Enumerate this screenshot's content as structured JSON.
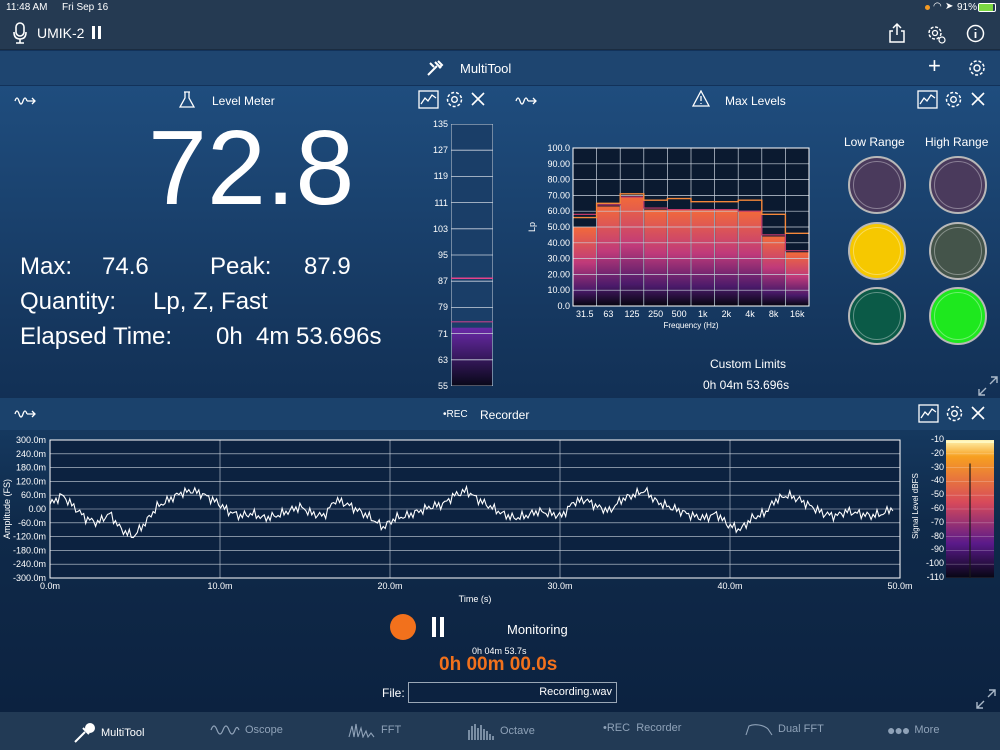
{
  "status": {
    "time": "11:48 AM",
    "date": "Fri Sep 16",
    "battery": "91%"
  },
  "topbar": {
    "device": "UMIK-2",
    "icons": [
      "microphone-icon",
      "pause-icon",
      "share-icon",
      "settings-gear-icon",
      "info-icon"
    ]
  },
  "multitool": {
    "title": "MultiTool"
  },
  "level_meter": {
    "title": "Level Meter",
    "value": "72.8",
    "max_label": "Max:",
    "max_value": "74.6",
    "peak_label": "Peak:",
    "peak_value": "87.9",
    "quantity_label": "Quantity:",
    "quantity_value": "Lp, Z, Fast",
    "elapsed_label": "Elapsed Time:",
    "elapsed_value": "0h  4m 53.696s",
    "scale": [
      "135",
      "127",
      "119",
      "111",
      "103",
      "95",
      "87",
      "79",
      "71",
      "63",
      "55"
    ],
    "bar_level": 72.8,
    "peak_hold": 87.9,
    "max_hold": 74.6
  },
  "max_levels": {
    "title": "Max Levels",
    "low_range": "Low Range",
    "high_range": "High Range",
    "custom_limits": "Custom Limits",
    "time": "0h 04m 53.696s",
    "lights": {
      "low": [
        "#4a3a5c",
        "#f6c800",
        "#0b5a47"
      ],
      "high": [
        "#4a3a5c",
        "#44544a",
        "#1ee81e"
      ]
    }
  },
  "recorder": {
    "title": "Recorder",
    "rec_tag": "•REC",
    "status": "Monitoring",
    "total_time": "0h 04m 53.7s",
    "record_time": "0h 00m 00.0s",
    "file_label": "File:",
    "file_name": "Recording.wav",
    "signal_scale": [
      "-10",
      "-20",
      "-30",
      "-40",
      "-50",
      "-60",
      "-70",
      "-80",
      "-90",
      "-100",
      "-110"
    ],
    "signal_ylabel": "Signal Level dBFS",
    "signal_level": -27
  },
  "tabs": [
    {
      "label": "MultiTool",
      "icon": "multitool-icon"
    },
    {
      "label": "Oscope",
      "icon": "oscope-icon"
    },
    {
      "label": "FFT",
      "icon": "fft-icon"
    },
    {
      "label": "Octave",
      "icon": "octave-icon"
    },
    {
      "label": "•REC  Recorder",
      "icon": "recorder-icon"
    },
    {
      "label": "Dual FFT",
      "icon": "dual-fft-icon"
    },
    {
      "label": "More",
      "icon": "more-icon"
    }
  ],
  "chart_data": [
    {
      "type": "bar",
      "title": "",
      "xlabel": "Frequency (Hz)",
      "ylabel": "Lp",
      "categories": [
        "31.5",
        "63",
        "125",
        "250",
        "500",
        "1k",
        "2k",
        "4k",
        "8k",
        "16k"
      ],
      "yticks": [
        "0.0",
        "10.00",
        "20.00",
        "30.00",
        "40.00",
        "50.00",
        "60.00",
        "70.00",
        "80.00",
        "90.00",
        "100.0"
      ],
      "ylim": [
        0,
        100
      ],
      "values": [
        50,
        63,
        69,
        61,
        61,
        61,
        61,
        60,
        44,
        34
      ],
      "max_line": [
        56,
        65,
        71,
        67,
        68,
        66,
        66,
        67,
        58,
        46
      ],
      "limit_line": [
        58,
        64,
        69,
        62,
        61,
        61,
        61,
        60,
        45,
        35
      ]
    },
    {
      "type": "line",
      "title": "",
      "xlabel": "Time (s)",
      "ylabel": "Amplitude (FS)",
      "xticks": [
        "0.0m",
        "10.0m",
        "20.0m",
        "30.0m",
        "40.0m",
        "50.0m"
      ],
      "yticks": [
        "300.0m",
        "240.0m",
        "180.0m",
        "120.0m",
        "60.0m",
        "0.00",
        "-60.0m",
        "-120.0m",
        "-180.0m",
        "-240.0m",
        "-300.0m"
      ],
      "xlim": [
        0,
        50
      ],
      "ylim": [
        -300,
        300
      ],
      "x": [
        0,
        0.7,
        1.4,
        2.1,
        2.8,
        3.5,
        4.2,
        4.9,
        5.6,
        6.3,
        7,
        7.7,
        8.4,
        9.1,
        9.8,
        10.5,
        11.2,
        11.9,
        12.6,
        13.3,
        14,
        14.7,
        15.4,
        16.1,
        16.8,
        17.5,
        18.2,
        18.9,
        19.6,
        20.3,
        21,
        21.7,
        22.4,
        23.1,
        23.8,
        24.5,
        25.2,
        25.9,
        26.6,
        27.3,
        28,
        28.7,
        29.4,
        30.1,
        30.8,
        31.5,
        32.2,
        32.9,
        33.6,
        34.3,
        35,
        35.7,
        36.4,
        37.1,
        37.8,
        38.5,
        39.2,
        39.9,
        40.6,
        41.3,
        42,
        42.7,
        43.4,
        44.1,
        44.8,
        45.5,
        46.2,
        46.9,
        47.6,
        48.3,
        49,
        49.7
      ],
      "y": [
        20,
        60,
        10,
        -40,
        -60,
        -20,
        -90,
        -120,
        -60,
        10,
        40,
        70,
        80,
        60,
        30,
        -10,
        -30,
        -20,
        -40,
        -30,
        -10,
        10,
        -20,
        -30,
        40,
        20,
        -10,
        -40,
        -80,
        -40,
        -30,
        -10,
        10,
        20,
        60,
        80,
        40,
        10,
        -20,
        -40,
        -30,
        -10,
        -20,
        -30,
        30,
        40,
        10,
        -10,
        40,
        60,
        80,
        30,
        10,
        -10,
        -30,
        -40,
        -20,
        -70,
        -90,
        -40,
        -20,
        40,
        60,
        40,
        10,
        -20,
        -30,
        -10,
        -20,
        -30,
        -20,
        10
      ]
    }
  ]
}
